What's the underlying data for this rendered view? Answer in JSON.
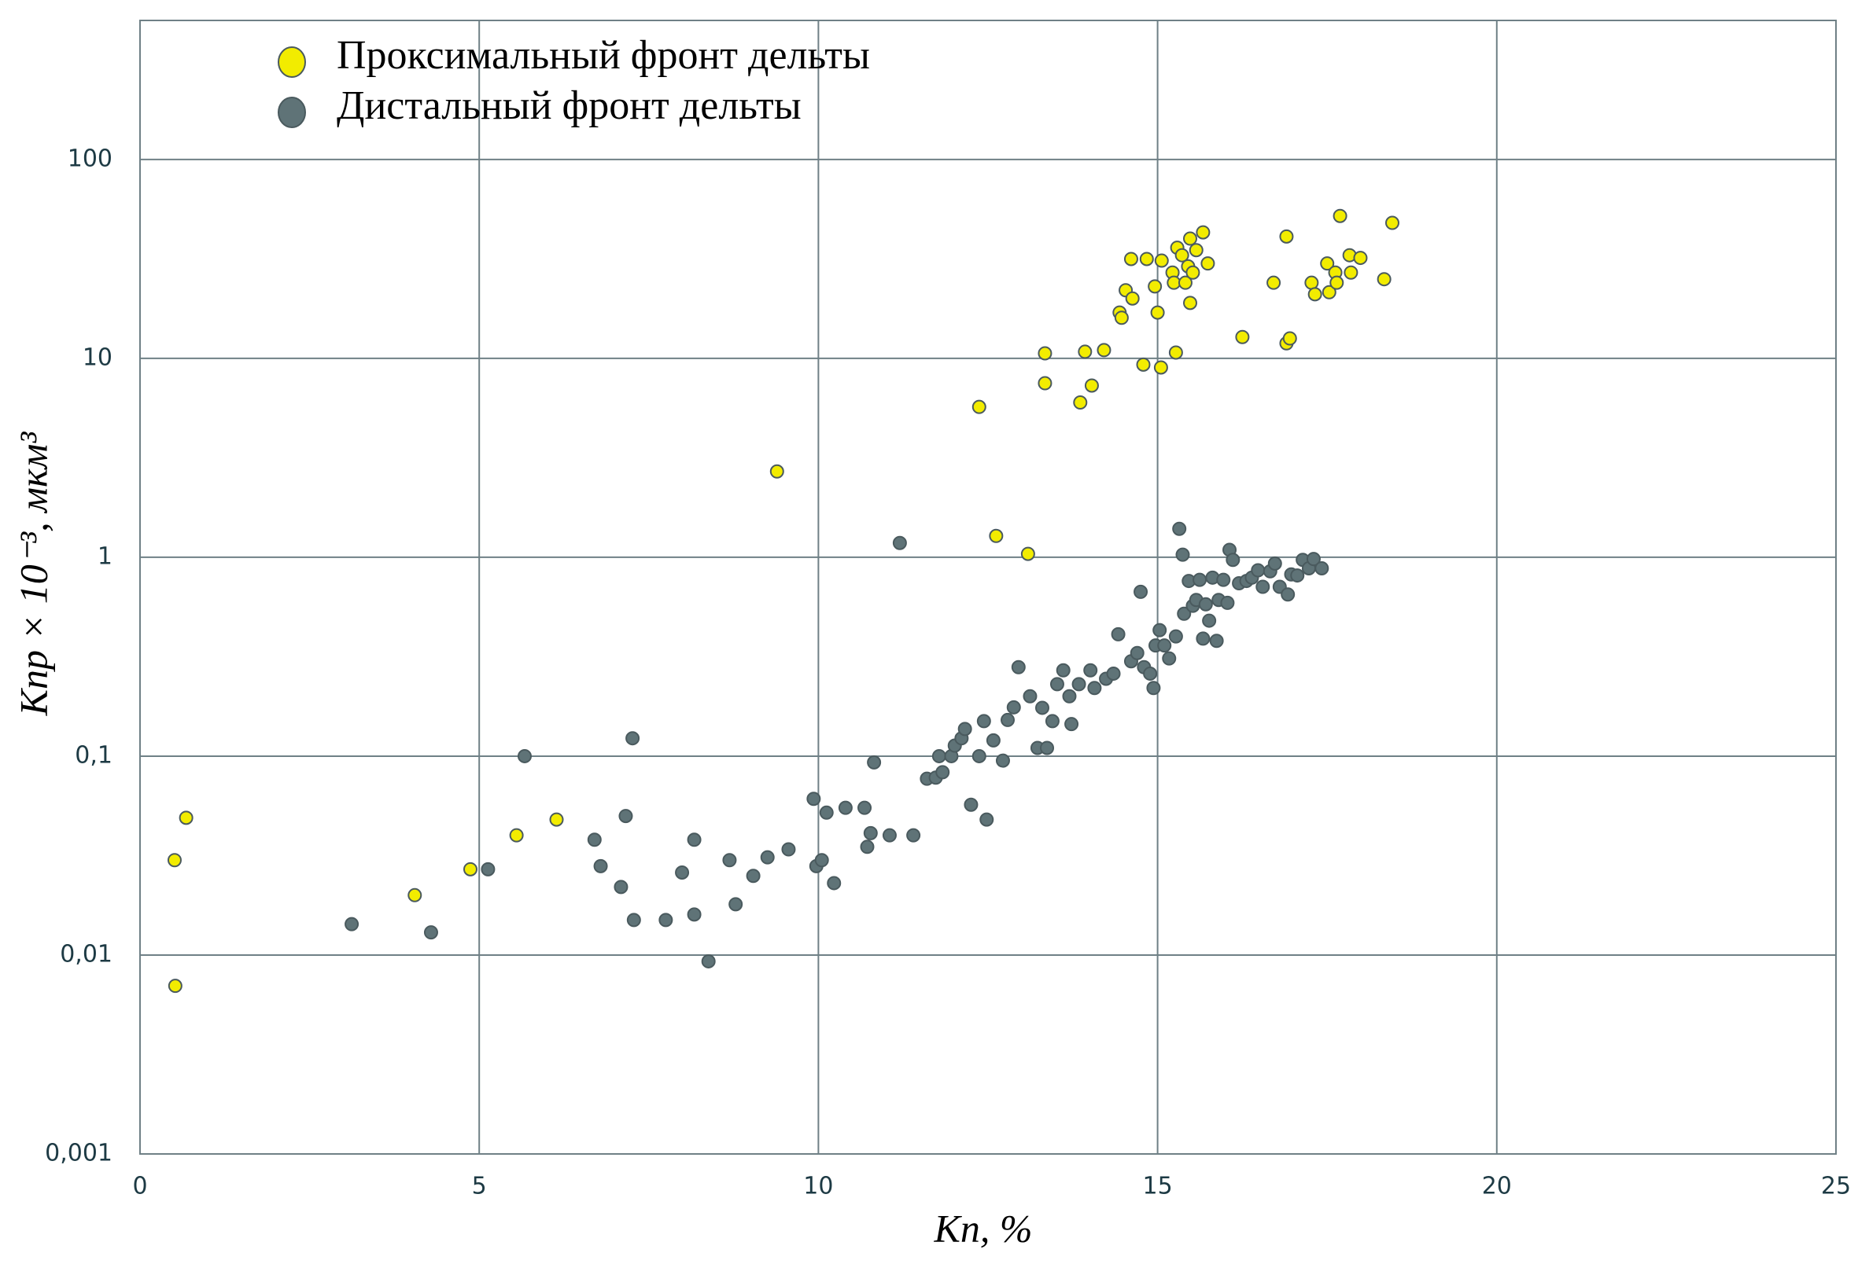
{
  "chart_data": {
    "type": "scatter",
    "xlabel": "Kп, %",
    "ylabel": "Kпр × 10⁻³, мкм³",
    "xlim": [
      0,
      25
    ],
    "xticks": [
      0,
      5,
      10,
      15,
      20,
      25
    ],
    "ylim": [
      0.001,
      500
    ],
    "log_y": true,
    "grid": true,
    "legend": "upper left",
    "yticks": [
      {
        "value": 0.001,
        "label": "0,001"
      },
      {
        "value": 0.01,
        "label": "0,01"
      },
      {
        "value": 0.1,
        "label": "0,1"
      },
      1,
      10,
      100
    ],
    "series": [
      {
        "name": "Проксимальный фронт дельты",
        "color": "#f2ec00",
        "x": [
          0.51,
          0.68,
          0.52,
          4.05,
          4.87,
          5.55,
          6.14,
          9.39,
          12.37,
          12.62,
          13.09,
          13.34,
          13.34,
          13.93,
          13.86,
          14.03,
          14.21,
          14.44,
          14.47,
          14.53,
          14.63,
          14.61,
          14.84,
          14.79,
          14.96,
          15.0,
          15.06,
          15.05,
          15.27,
          15.22,
          15.24,
          15.29,
          15.36,
          15.41,
          15.45,
          15.48,
          15.48,
          15.52,
          15.57,
          15.67,
          15.74,
          16.25,
          16.71,
          16.9,
          16.9,
          16.95,
          17.27,
          17.32,
          17.5,
          17.53,
          17.62,
          17.64,
          17.69,
          17.83,
          17.85,
          17.99,
          18.34,
          18.46
        ],
        "values": [
          0.03,
          0.049,
          0.007,
          0.02,
          0.027,
          0.04,
          0.048,
          2.7,
          5.7,
          1.28,
          1.04,
          10.6,
          7.5,
          10.8,
          6.0,
          7.3,
          11,
          17,
          16,
          22,
          20,
          31.6,
          31.6,
          9.3,
          23,
          17,
          31,
          9,
          10.7,
          27,
          24,
          36,
          33,
          24,
          29,
          40,
          19,
          27,
          35,
          43,
          30,
          12.8,
          24,
          41,
          11.9,
          12.6,
          24,
          21,
          30,
          21.5,
          27,
          24,
          52,
          33,
          27,
          32,
          25,
          48
        ]
      },
      {
        "name": "Дистальный фронт дельты",
        "color": "#5f7377",
        "x": [
          3.12,
          4.29,
          5.13,
          5.67,
          6.7,
          6.79,
          7.09,
          7.16,
          7.26,
          7.28,
          7.75,
          7.99,
          8.17,
          8.17,
          8.38,
          8.69,
          8.78,
          9.04,
          9.25,
          9.56,
          9.93,
          9.97,
          10.05,
          10.12,
          10.23,
          10.4,
          10.68,
          10.72,
          10.77,
          10.82,
          11.05,
          11.2,
          11.4,
          11.6,
          11.73,
          11.78,
          11.83,
          11.96,
          12.01,
          12.11,
          12.16,
          12.25,
          12.37,
          12.44,
          12.48,
          12.58,
          12.72,
          12.79,
          12.88,
          12.95,
          13.12,
          13.23,
          13.3,
          13.37,
          13.45,
          13.52,
          13.61,
          13.7,
          13.73,
          13.84,
          14.01,
          14.07,
          14.24,
          14.35,
          14.42,
          14.61,
          14.7,
          14.75,
          14.8,
          14.89,
          14.94,
          14.97,
          15.03,
          15.1,
          15.17,
          15.27,
          15.32,
          15.37,
          15.39,
          15.46,
          15.52,
          15.57,
          15.62,
          15.67,
          15.71,
          15.76,
          15.81,
          15.87,
          15.9,
          15.97,
          16.03,
          16.06,
          16.11,
          16.2,
          16.31,
          16.39,
          16.48,
          16.55,
          16.66,
          16.73,
          16.8,
          16.92,
          16.97,
          17.06,
          17.14,
          17.23,
          17.3,
          17.42
        ],
        "values": [
          0.0143,
          0.013,
          0.027,
          0.1,
          0.038,
          0.028,
          0.022,
          0.05,
          0.123,
          0.015,
          0.015,
          0.026,
          0.038,
          0.016,
          0.0093,
          0.03,
          0.018,
          0.025,
          0.031,
          0.034,
          0.061,
          0.028,
          0.03,
          0.052,
          0.023,
          0.055,
          0.055,
          0.035,
          0.041,
          0.093,
          0.04,
          1.18,
          0.04,
          0.077,
          0.078,
          0.1,
          0.083,
          0.1,
          0.113,
          0.123,
          0.137,
          0.057,
          0.1,
          0.15,
          0.048,
          0.12,
          0.095,
          0.152,
          0.176,
          0.28,
          0.2,
          0.11,
          0.175,
          0.11,
          0.15,
          0.23,
          0.27,
          0.2,
          0.145,
          0.23,
          0.27,
          0.22,
          0.245,
          0.26,
          0.41,
          0.3,
          0.33,
          0.67,
          0.28,
          0.26,
          0.22,
          0.36,
          0.43,
          0.36,
          0.31,
          0.4,
          1.39,
          1.03,
          0.52,
          0.76,
          0.57,
          0.61,
          0.77,
          0.39,
          0.58,
          0.48,
          0.79,
          0.38,
          0.61,
          0.77,
          0.59,
          1.09,
          0.97,
          0.74,
          0.76,
          0.79,
          0.86,
          0.71,
          0.85,
          0.93,
          0.71,
          0.65,
          0.82,
          0.81,
          0.97,
          0.88,
          0.98,
          0.88
        ]
      }
    ]
  }
}
